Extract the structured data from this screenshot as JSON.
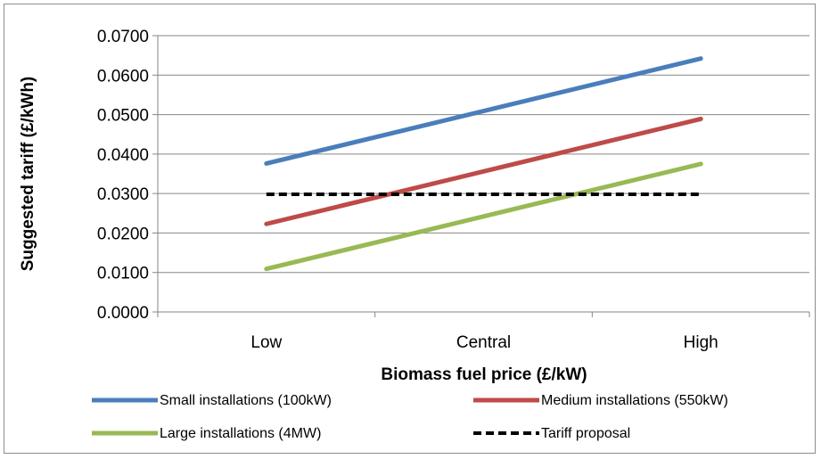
{
  "chart_data": {
    "type": "line",
    "title": "",
    "xlabel": "Biomass fuel price (£/kW)",
    "ylabel": "Suggested tariff (£/kWh)",
    "categories": [
      "Low",
      "Central",
      "High"
    ],
    "ylim": [
      0,
      0.07
    ],
    "yticks": [
      "0.0000",
      "0.0100",
      "0.0200",
      "0.0300",
      "0.0400",
      "0.0500",
      "0.0600",
      "0.0700"
    ],
    "grid": true,
    "legend_position": "bottom",
    "series": [
      {
        "name": "Small installations (100kW)",
        "values": [
          0.0376,
          0.0509,
          0.0642
        ],
        "color": "#4a7ebb",
        "dash": false
      },
      {
        "name": "Medium installations (550kW)",
        "values": [
          0.0223,
          0.0356,
          0.0489
        ],
        "color": "#be4b48",
        "dash": false
      },
      {
        "name": "Large installations (4MW)",
        "values": [
          0.0109,
          0.0242,
          0.0375
        ],
        "color": "#98b954",
        "dash": false
      },
      {
        "name": "Tariff proposal",
        "values": [
          0.0298,
          0.0298,
          0.0298
        ],
        "color": "#000000",
        "dash": true
      }
    ]
  }
}
